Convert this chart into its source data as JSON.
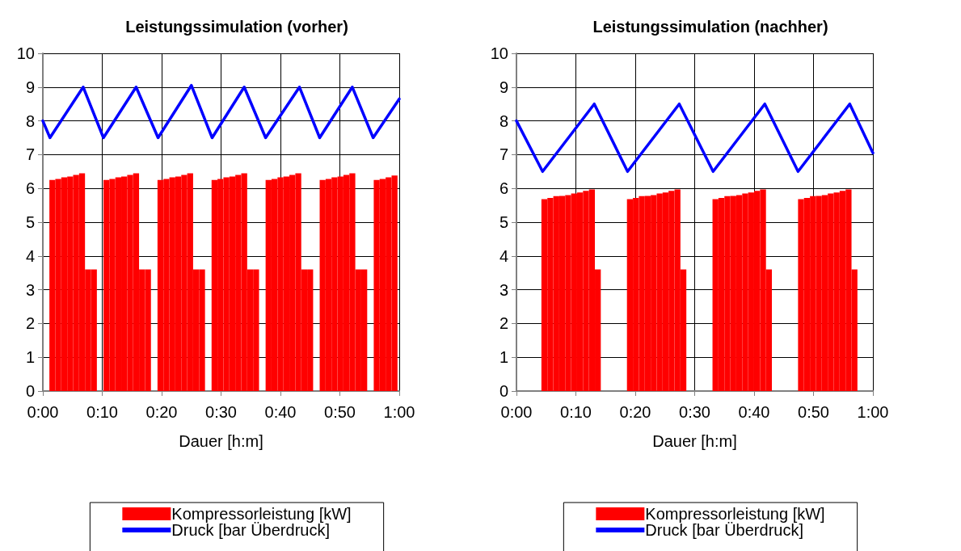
{
  "chart_data": [
    {
      "type": "bar",
      "title": "Leistungssimulation (vorher)",
      "xlabel": "Dauer [h:m]",
      "xlim": [
        0,
        1
      ],
      "ylim": [
        0,
        10
      ],
      "yticks": [
        0,
        1,
        2,
        3,
        4,
        5,
        6,
        7,
        8,
        9,
        10
      ],
      "xticks": [
        {
          "value": 0,
          "label": "0:00"
        },
        {
          "value": 0.16667,
          "label": "0:10"
        },
        {
          "value": 0.33333,
          "label": "0:20"
        },
        {
          "value": 0.5,
          "label": "0:30"
        },
        {
          "value": 0.66667,
          "label": "0:40"
        },
        {
          "value": 0.83333,
          "label": "0:50"
        },
        {
          "value": 1,
          "label": "1:00"
        }
      ],
      "grid": true,
      "legend": "bottom",
      "marker": "none",
      "series": [
        {
          "name": "Kompressorleistung [kW]",
          "color": "#ff0000",
          "x": [
            0.0267,
            0.0433,
            0.06,
            0.0767,
            0.0933,
            0.11,
            0.1267,
            0.1433,
            0.1783,
            0.195,
            0.2117,
            0.2283,
            0.245,
            0.2617,
            0.2783,
            0.295,
            0.33,
            0.3467,
            0.3633,
            0.38,
            0.3967,
            0.4133,
            0.43,
            0.4467,
            0.4817,
            0.4983,
            0.515,
            0.5317,
            0.5483,
            0.565,
            0.5817,
            0.5983,
            0.6333,
            0.65,
            0.6667,
            0.6833,
            0.7,
            0.7167,
            0.7333,
            0.75,
            0.785,
            0.8017,
            0.8183,
            0.835,
            0.8517,
            0.8683,
            0.885,
            0.9017,
            0.9367,
            0.9533,
            0.97,
            0.9867
          ],
          "values": [
            6.25,
            6.28,
            6.33,
            6.35,
            6.4,
            6.45,
            3.6,
            3.6,
            6.25,
            6.28,
            6.33,
            6.35,
            6.4,
            6.45,
            3.6,
            3.6,
            6.25,
            6.28,
            6.33,
            6.35,
            6.4,
            6.45,
            3.6,
            3.6,
            6.25,
            6.28,
            6.33,
            6.35,
            6.4,
            6.45,
            3.6,
            3.6,
            6.25,
            6.28,
            6.33,
            6.35,
            6.4,
            6.45,
            3.6,
            3.6,
            6.25,
            6.28,
            6.33,
            6.35,
            6.4,
            6.45,
            3.6,
            3.6,
            6.25,
            6.28,
            6.33,
            6.38
          ]
        },
        {
          "name": "Druck [bar Überdruck]",
          "type": "line",
          "color": "#0000ff",
          "x": [
            0,
            0.02,
            0.1133,
            0.17,
            0.2617,
            0.3233,
            0.4167,
            0.475,
            0.565,
            0.625,
            0.72,
            0.7767,
            0.8683,
            0.9267,
            1
          ],
          "values": [
            8.0,
            7.5,
            9.0,
            7.5,
            9.0,
            7.5,
            9.05,
            7.5,
            9.0,
            7.5,
            9.0,
            7.5,
            9.0,
            7.5,
            8.65
          ]
        }
      ]
    },
    {
      "type": "bar",
      "title": "Leistungssimulation (nachher)",
      "xlabel": "Dauer [h:m]",
      "xlim": [
        0,
        1
      ],
      "ylim": [
        0,
        10
      ],
      "yticks": [
        0,
        1,
        2,
        3,
        4,
        5,
        6,
        7,
        8,
        9,
        10
      ],
      "xticks": [
        {
          "value": 0,
          "label": "0:00"
        },
        {
          "value": 0.16667,
          "label": "0:10"
        },
        {
          "value": 0.33333,
          "label": "0:20"
        },
        {
          "value": 0.5,
          "label": "0:30"
        },
        {
          "value": 0.66667,
          "label": "0:40"
        },
        {
          "value": 0.83333,
          "label": "0:50"
        },
        {
          "value": 1,
          "label": "1:00"
        }
      ],
      "grid": true,
      "legend": "bottom",
      "marker": "none",
      "series": [
        {
          "name": "Kompressorleistung [kW]",
          "color": "#ff0000",
          "x": [
            0.0783,
            0.095,
            0.1117,
            0.1283,
            0.145,
            0.1617,
            0.1783,
            0.195,
            0.2117,
            0.2283,
            0.3183,
            0.335,
            0.3517,
            0.3683,
            0.385,
            0.4017,
            0.4183,
            0.435,
            0.4517,
            0.4683,
            0.5583,
            0.575,
            0.5917,
            0.6083,
            0.625,
            0.6417,
            0.6583,
            0.675,
            0.6917,
            0.7083,
            0.7983,
            0.815,
            0.8317,
            0.8483,
            0.865,
            0.8817,
            0.8983,
            0.915,
            0.9317,
            0.9483
          ],
          "values": [
            5.68,
            5.72,
            5.77,
            5.78,
            5.8,
            5.85,
            5.88,
            5.93,
            5.97,
            3.6,
            5.68,
            5.72,
            5.77,
            5.78,
            5.8,
            5.85,
            5.88,
            5.93,
            5.97,
            3.6,
            5.68,
            5.72,
            5.77,
            5.78,
            5.8,
            5.85,
            5.88,
            5.93,
            5.97,
            3.6,
            5.68,
            5.72,
            5.77,
            5.78,
            5.8,
            5.85,
            5.88,
            5.93,
            5.97,
            3.6
          ]
        },
        {
          "name": "Druck [bar Überdruck]",
          "type": "line",
          "color": "#0000ff",
          "x": [
            0,
            0.0733,
            0.2183,
            0.3117,
            0.4567,
            0.5517,
            0.6967,
            0.79,
            0.935,
            1
          ],
          "values": [
            8.0,
            6.5,
            8.5,
            6.5,
            8.5,
            6.5,
            8.5,
            6.5,
            8.5,
            7.05
          ]
        }
      ]
    }
  ]
}
